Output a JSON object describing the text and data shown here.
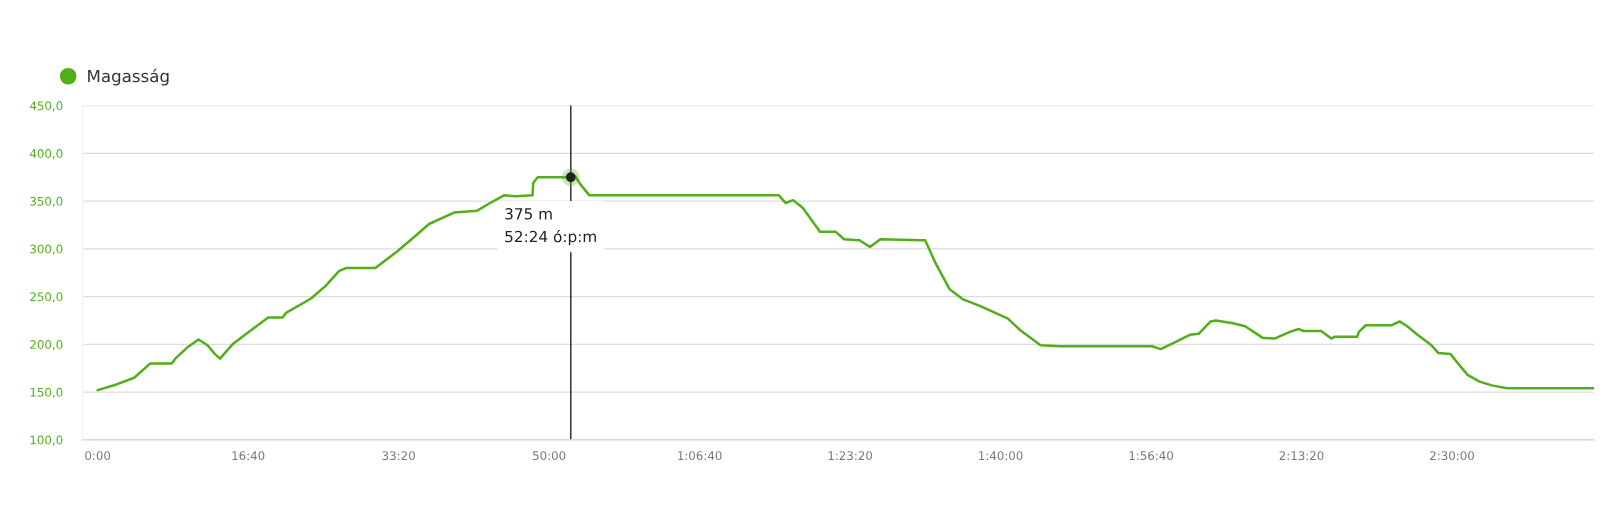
{
  "chart_data": {
    "type": "line",
    "x": [
      0,
      125,
      243,
      350,
      492,
      516,
      598,
      670,
      730,
      778,
      813,
      896,
      1039,
      1133,
      1229,
      1252,
      1418,
      1513,
      1605,
      1655,
      1845,
      1988,
      2107,
      2202,
      2368,
      2522,
      2608,
      2700,
      2776,
      2890,
      2894,
      2924,
      3032,
      3139,
      3174,
      3210,
      3268,
      3276,
      4527,
      4571,
      4621,
      4685,
      4800,
      4903,
      4960,
      5063,
      5132,
      5201,
      5476,
      5499,
      5568,
      5660,
      5751,
      5866,
      6049,
      6129,
      6266,
      6392,
      6663,
      7007,
      7064,
      7144,
      7258,
      7316,
      7396,
      7430,
      7545,
      7625,
      7740,
      7820,
      7923,
      7981,
      8014,
      8130,
      8198,
      8221,
      8370,
      8381,
      8427,
      8600,
      8652,
      8702,
      8771,
      8863,
      8908,
      8989,
      9035,
      9103,
      9183,
      9263,
      9367,
      9944
    ],
    "series": [
      {
        "name": "Magasság",
        "color": "#52ae1a",
        "values": [
          152,
          158,
          165,
          180,
          180,
          185,
          197,
          205,
          199,
          190,
          185,
          200,
          217,
          228,
          228,
          233,
          248,
          261,
          277,
          280,
          280,
          297,
          313,
          326,
          338,
          340,
          348,
          356,
          355,
          356,
          369,
          375,
          375,
          375,
          376,
          367,
          356,
          356,
          356,
          348,
          351,
          343,
          318,
          318,
          310,
          309,
          302,
          310,
          309,
          309,
          285,
          258,
          247,
          240,
          227,
          215,
          199,
          198,
          198,
          198,
          195,
          201,
          210,
          211,
          224,
          225,
          222,
          219,
          207,
          206,
          213,
          216,
          214,
          214,
          206,
          208,
          208,
          213,
          220,
          220,
          224,
          219,
          210,
          199,
          191,
          190,
          181,
          168,
          161,
          157,
          154,
          154
        ]
      }
    ],
    "xlim": [
      -100,
      9944
    ],
    "xticks": [
      {
        "value": 0,
        "label": "0:00"
      },
      {
        "value": 1000,
        "label": "16:40"
      },
      {
        "value": 2000,
        "label": "33:20"
      },
      {
        "value": 3000,
        "label": "50:00"
      },
      {
        "value": 4000,
        "label": "1:06:40"
      },
      {
        "value": 5000,
        "label": "1:23:20"
      },
      {
        "value": 6000,
        "label": "1:40:00"
      },
      {
        "value": 7000,
        "label": "1:56:40"
      },
      {
        "value": 8000,
        "label": "2:13:20"
      },
      {
        "value": 9000,
        "label": "2:30:00"
      }
    ],
    "ylim": [
      100,
      450
    ],
    "yticks": [
      {
        "value": 100,
        "label": "100,0"
      },
      {
        "value": 150,
        "label": "150,0"
      },
      {
        "value": 200,
        "label": "200,0"
      },
      {
        "value": 250,
        "label": "250,0"
      },
      {
        "value": 300,
        "label": "300,0"
      },
      {
        "value": 350,
        "label": "350,0"
      },
      {
        "value": 400,
        "label": "400,0"
      },
      {
        "value": 450,
        "label": "450,0"
      }
    ],
    "ref_lines": [
      {
        "axis": "x",
        "value": 3144,
        "color": "#222222"
      }
    ],
    "annotations": [
      {
        "text": "375 m\n52:24 ó:p:m",
        "x": 3144,
        "y": 375
      }
    ],
    "grid": "y",
    "legend": "top left",
    "marker": "none",
    "line_style": "solid"
  }
}
